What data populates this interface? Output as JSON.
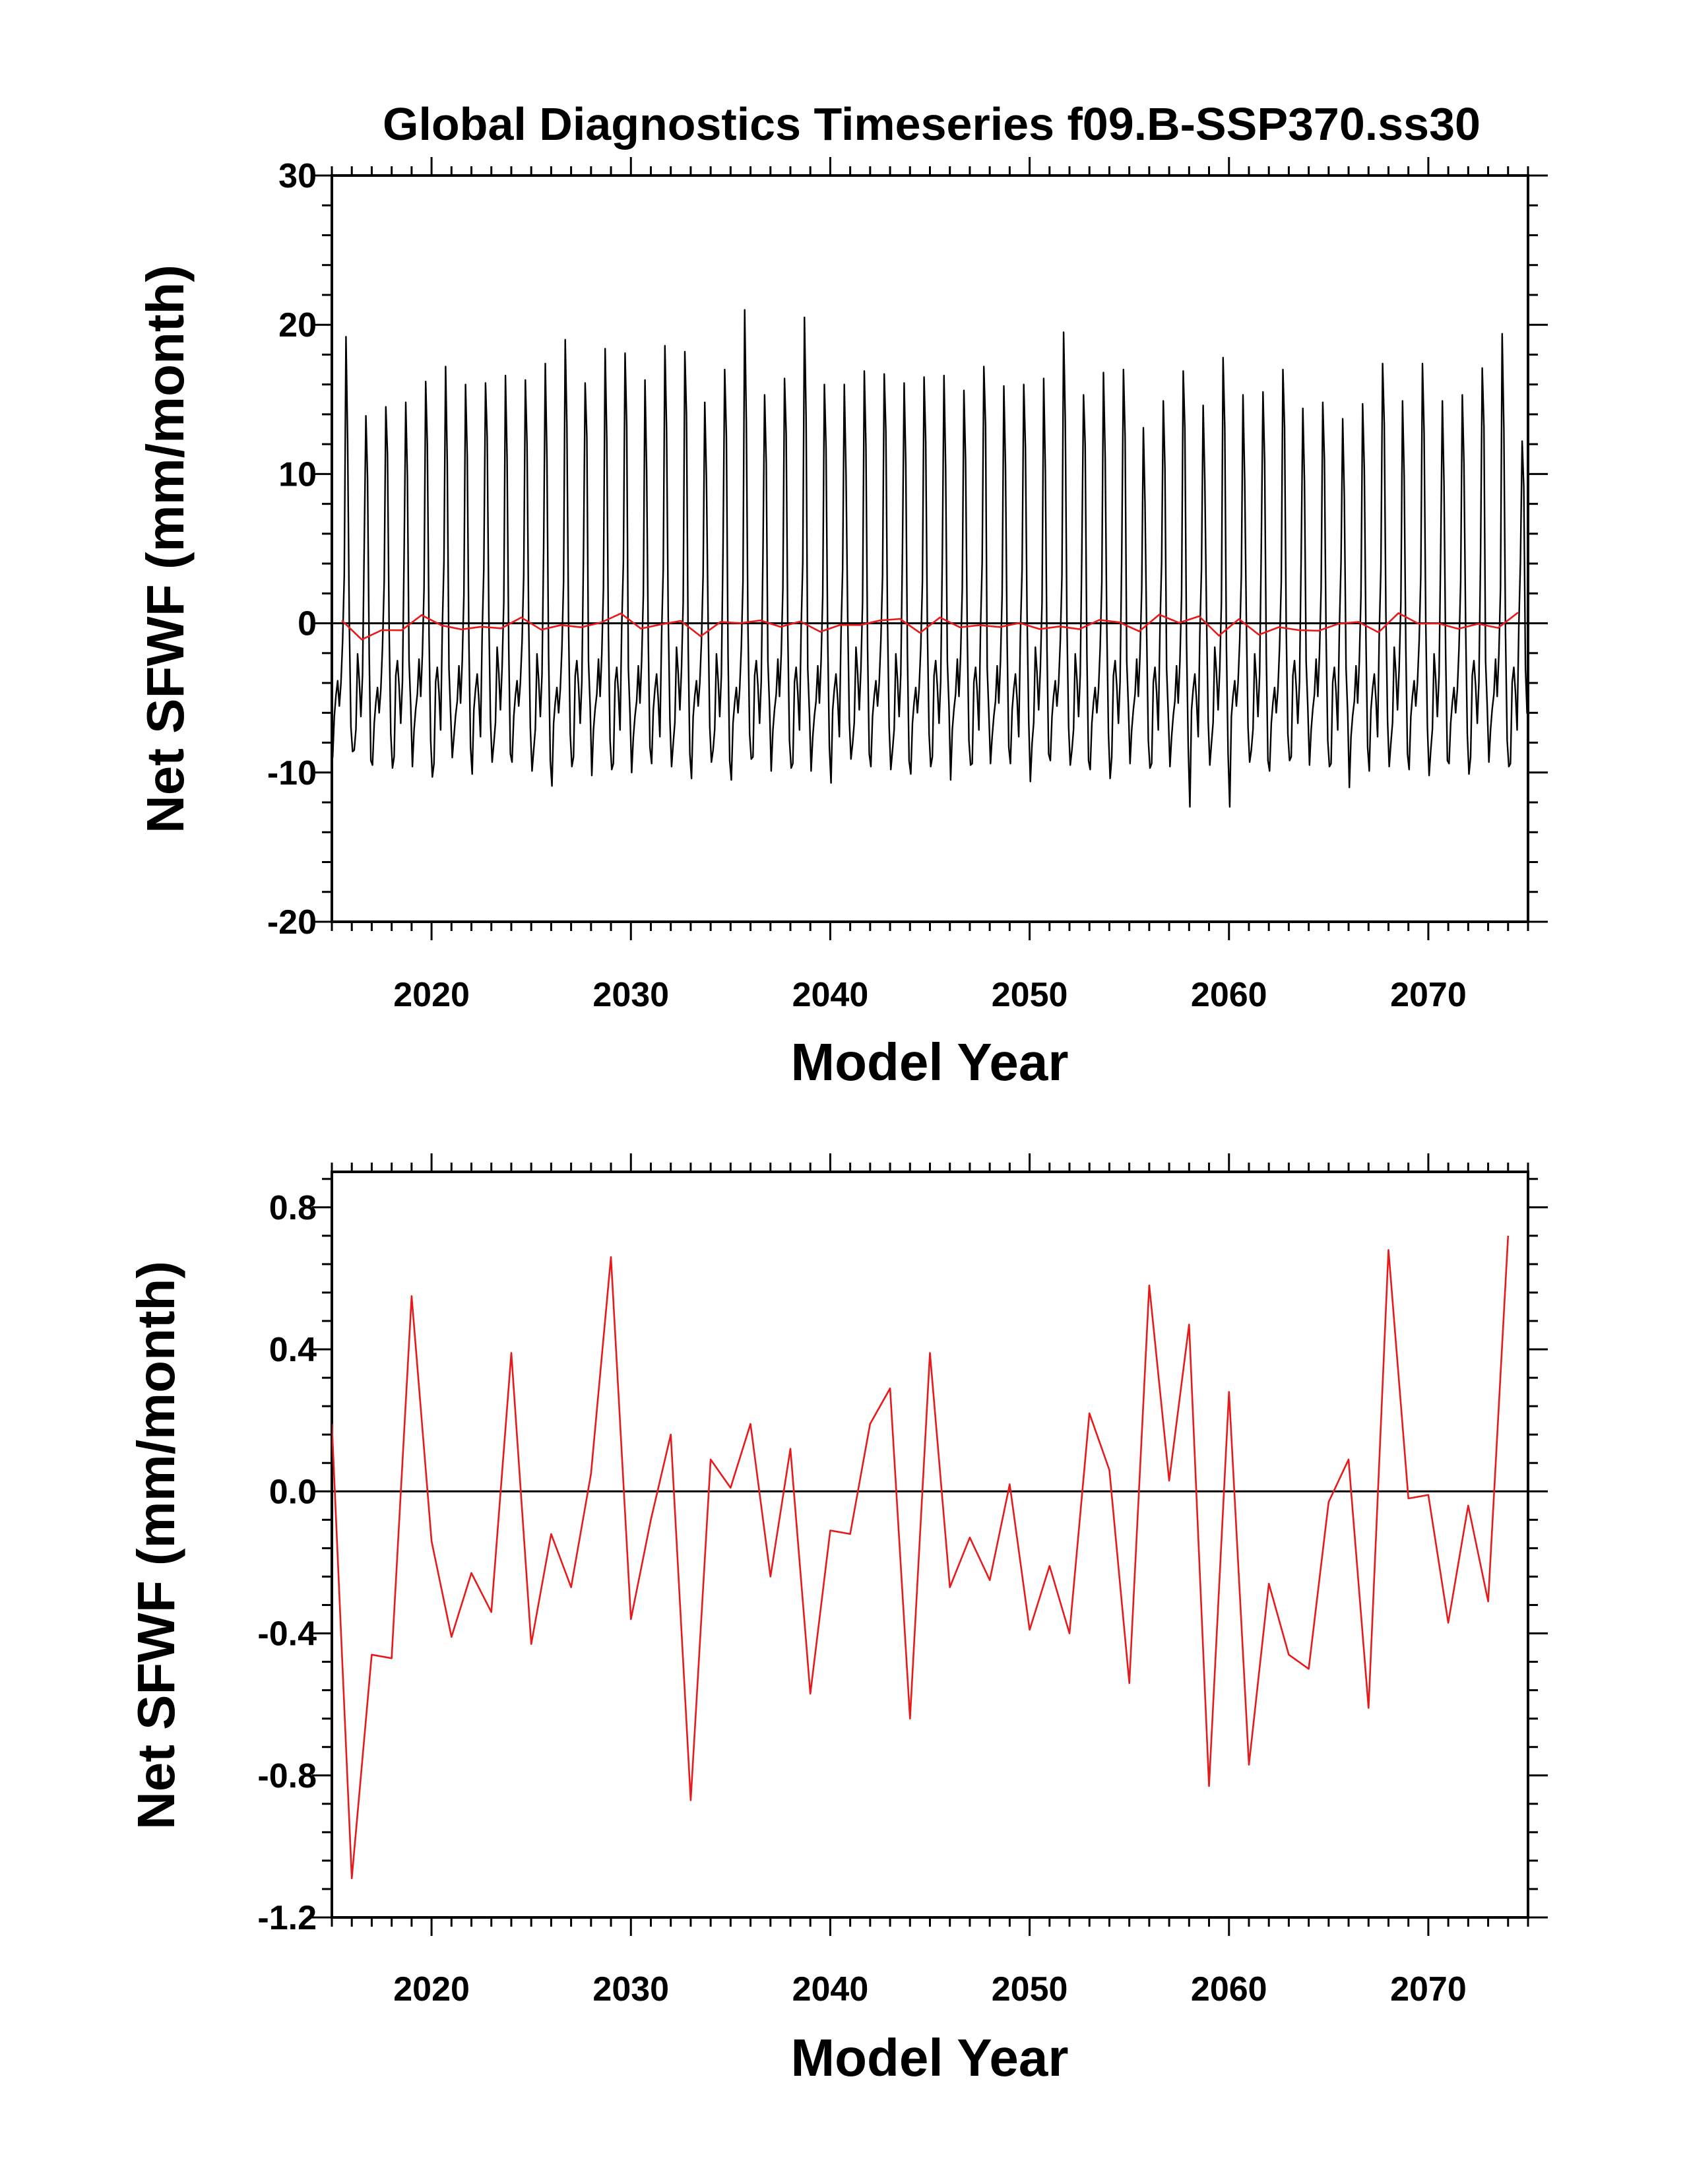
{
  "figure": {
    "title": "Global Diagnostics Timeseries f09.B-SSP370.ss30"
  },
  "colors": {
    "monthly_series": "#000000",
    "annual_series": "#e8191b",
    "zero_line": "#000000",
    "frame": "#000000"
  },
  "chart_data": [
    {
      "type": "line",
      "xlabel": "Model Year",
      "ylabel": "Net SFWF (mm/month)",
      "xlim": [
        2015,
        2075
      ],
      "ylim": [
        -20,
        30
      ],
      "x_ticks": [
        2020,
        2030,
        2040,
        2050,
        2060,
        2070
      ],
      "y_ticks": [
        -20,
        -10,
        0,
        10,
        20,
        30
      ],
      "y_tick_labels": [
        "-20",
        "-10",
        "0",
        "10",
        "20",
        "30"
      ],
      "reference_line": 0,
      "grid": false,
      "series": [
        {
          "id": "monthly",
          "color": "#000000",
          "x_start": 2015.04,
          "x_step": 0.08333,
          "seasonal_cycle": {
            "month_offsets": [
              -8.8,
              -7.6,
              -5.3,
              -3.4,
              -4.2,
              -5.8,
              -2.1,
              3.2,
              14.0,
              10.5,
              -1.2,
              -7.4
            ],
            "september_peaks": [
              19.2,
              13.9,
              14.5,
              14.8,
              16.2,
              17.2,
              16.0,
              16.1,
              16.6,
              16.3,
              17.4,
              19.0,
              16.1,
              18.4,
              18.1,
              16.3,
              18.6,
              18.2,
              14.8,
              17.0,
              21.0,
              15.3,
              16.4,
              20.5,
              16.0,
              16.0,
              16.9,
              16.7,
              16.1,
              16.5,
              16.6,
              15.6,
              17.2,
              15.9,
              16.0,
              16.4,
              19.5,
              15.3,
              16.8,
              17.0,
              13.1,
              14.9,
              16.9,
              14.6,
              17.8,
              15.3,
              15.5,
              17.0,
              14.4,
              14.8,
              13.7,
              14.7,
              17.4,
              14.9,
              17.4,
              14.9,
              15.3,
              17.1,
              19.4,
              12.2
            ],
            "march_troughs": [
              -9.0,
              -8.6,
              -9.5,
              -9.7,
              -9.6,
              -10.3,
              -9.0,
              -10.1,
              -9.3,
              -9.3,
              -9.9,
              -10.9,
              -9.6,
              -10.2,
              -9.8,
              -10.0,
              -9.4,
              -9.6,
              -10.4,
              -9.3,
              -10.5,
              -9.1,
              -9.9,
              -9.7,
              -9.9,
              -10.7,
              -9.1,
              -9.6,
              -9.8,
              -10.1,
              -9.6,
              -10.5,
              -9.5,
              -9.4,
              -9.4,
              -10.6,
              -9.2,
              -9.5,
              -9.8,
              -10.4,
              -9.4,
              -9.7,
              -9.6,
              -12.3,
              -9.5,
              -12.3,
              -9.3,
              -9.9,
              -9.2,
              -9.5,
              -9.6,
              -11.0,
              -9.9,
              -9.6,
              -9.8,
              -10.2,
              -9.4,
              -10.1,
              -9.3,
              -9.6
            ]
          }
        },
        {
          "id": "annual",
          "color": "#e8191b",
          "x": [
            2015.5,
            2016.5,
            2017.5,
            2018.5,
            2019.5,
            2020.5,
            2021.5,
            2022.5,
            2023.5,
            2024.5,
            2025.5,
            2026.5,
            2027.5,
            2028.5,
            2029.5,
            2030.5,
            2031.5,
            2032.5,
            2033.5,
            2034.5,
            2035.5,
            2036.5,
            2037.5,
            2038.5,
            2039.5,
            2040.5,
            2041.5,
            2042.5,
            2043.5,
            2044.5,
            2045.5,
            2046.5,
            2047.5,
            2048.5,
            2049.5,
            2050.5,
            2051.5,
            2052.5,
            2053.5,
            2054.5,
            2055.5,
            2056.5,
            2057.5,
            2058.5,
            2059.5,
            2060.5,
            2061.5,
            2062.5,
            2063.5,
            2064.5,
            2065.5,
            2066.5,
            2067.5,
            2068.5,
            2069.5,
            2070.5,
            2071.5,
            2072.5,
            2073.5,
            2074.5
          ],
          "values": [
            0.19,
            -1.09,
            -0.46,
            -0.47,
            0.55,
            -0.14,
            -0.41,
            -0.23,
            -0.34,
            0.39,
            -0.43,
            -0.12,
            -0.27,
            0.05,
            0.66,
            -0.36,
            -0.08,
            0.16,
            -0.87,
            0.09,
            0.01,
            0.19,
            -0.24,
            0.12,
            -0.57,
            -0.11,
            -0.12,
            0.19,
            0.29,
            -0.64,
            0.39,
            -0.27,
            -0.13,
            -0.25,
            0.02,
            -0.39,
            -0.21,
            -0.4,
            0.22,
            0.06,
            -0.54,
            0.58,
            0.03,
            0.47,
            -0.83,
            0.28,
            -0.77,
            -0.26,
            -0.46,
            -0.5,
            -0.03,
            0.09,
            -0.61,
            0.68,
            -0.02,
            -0.01,
            -0.37,
            -0.04,
            -0.31,
            0.72
          ]
        }
      ]
    },
    {
      "type": "line",
      "xlabel": "Model Year",
      "ylabel": "Net SFWF (mm/month)",
      "xlim": [
        2015,
        2075
      ],
      "ylim": [
        -1.2,
        0.9
      ],
      "x_ticks": [
        2020,
        2030,
        2040,
        2050,
        2060,
        2070
      ],
      "y_ticks": [
        -1.2,
        -0.8,
        -0.4,
        0.0,
        0.4,
        0.8
      ],
      "y_tick_labels": [
        "-1.2",
        "-0.8",
        "-0.4",
        "0.0",
        "0.4",
        "0.8"
      ],
      "reference_line": 0,
      "grid": false,
      "series": [
        {
          "id": "annual",
          "color": "#e8191b",
          "x": [
            2015.0,
            2016.0,
            2017.0,
            2018.0,
            2019.0,
            2020.0,
            2021.0,
            2022.0,
            2023.0,
            2024.0,
            2025.0,
            2026.0,
            2027.0,
            2028.0,
            2029.0,
            2030.0,
            2031.0,
            2032.0,
            2033.0,
            2034.0,
            2035.0,
            2036.0,
            2037.0,
            2038.0,
            2039.0,
            2040.0,
            2041.0,
            2042.0,
            2043.0,
            2044.0,
            2045.0,
            2046.0,
            2047.0,
            2048.0,
            2049.0,
            2050.0,
            2051.0,
            2052.0,
            2053.0,
            2054.0,
            2055.0,
            2056.0,
            2057.0,
            2058.0,
            2059.0,
            2060.0,
            2061.0,
            2062.0,
            2063.0,
            2064.0,
            2065.0,
            2066.0,
            2067.0,
            2068.0,
            2069.0,
            2070.0,
            2071.0,
            2072.0,
            2073.0,
            2074.0
          ],
          "values": [
            0.19,
            -1.09,
            -0.46,
            -0.47,
            0.55,
            -0.14,
            -0.41,
            -0.23,
            -0.34,
            0.39,
            -0.43,
            -0.12,
            -0.27,
            0.05,
            0.66,
            -0.36,
            -0.08,
            0.16,
            -0.87,
            0.09,
            0.01,
            0.19,
            -0.24,
            0.12,
            -0.57,
            -0.11,
            -0.12,
            0.19,
            0.29,
            -0.64,
            0.39,
            -0.27,
            -0.13,
            -0.25,
            0.02,
            -0.39,
            -0.21,
            -0.4,
            0.22,
            0.06,
            -0.54,
            0.58,
            0.03,
            0.47,
            -0.83,
            0.28,
            -0.77,
            -0.26,
            -0.46,
            -0.5,
            -0.03,
            0.09,
            -0.61,
            0.68,
            -0.02,
            -0.01,
            -0.37,
            -0.04,
            -0.31,
            0.72
          ]
        }
      ]
    }
  ]
}
